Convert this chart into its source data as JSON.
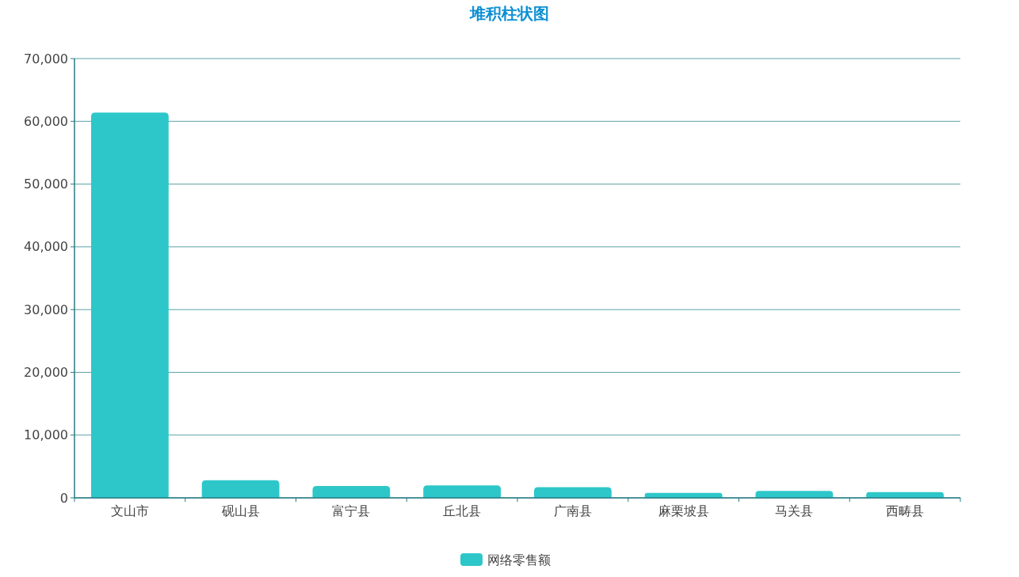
{
  "chart_data": {
    "type": "bar",
    "title": "堆积柱状图",
    "categories": [
      "文山市",
      "砚山县",
      "富宁县",
      "丘北县",
      "广南县",
      "麻栗坡县",
      "马关县",
      "西畴县"
    ],
    "series": [
      {
        "name": "网络零售额",
        "color": "#2ec7c9",
        "values": [
          61400,
          2800,
          1900,
          2000,
          1700,
          800,
          1100,
          900
        ]
      }
    ],
    "ylim": [
      0,
      70000
    ],
    "yticks": [
      {
        "value": 0,
        "label": "0"
      },
      {
        "value": 10000,
        "label": "10,000"
      },
      {
        "value": 20000,
        "label": "20,000"
      },
      {
        "value": 30000,
        "label": "30,000"
      },
      {
        "value": 40000,
        "label": "40,000"
      },
      {
        "value": 50000,
        "label": "50,000"
      },
      {
        "value": 60000,
        "label": "60,000"
      },
      {
        "value": 70000,
        "label": "70,000"
      }
    ],
    "grid": "y",
    "legend": "bottom"
  }
}
